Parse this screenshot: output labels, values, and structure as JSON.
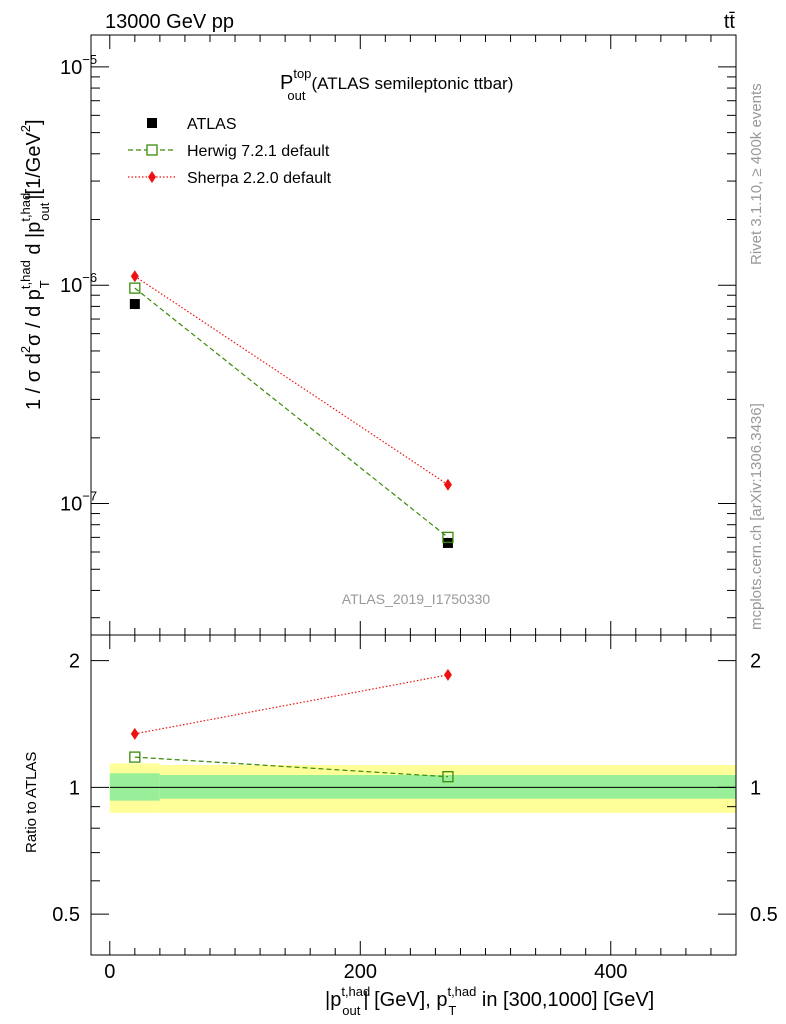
{
  "header": {
    "left": "13000 GeV pp",
    "right": "tt̄"
  },
  "side_labels": {
    "rivet": "Rivet 3.1.10, ≥ 400k events",
    "mcplots": "mcplots.cern.ch [arXiv:1306.3436]"
  },
  "colors": {
    "atlas": "#000000",
    "herwig": "#3a8a0a",
    "sherpa": "#ee1111",
    "band_inner": "#99ee99",
    "band_outer": "#ffff99",
    "watermark": "#999999"
  },
  "chart_data": [
    {
      "type": "scatter",
      "title": {
        "base": "P",
        "sup": "top",
        "sub": "out",
        "rest": "(ATLAS semileptonic ttbar)"
      },
      "watermark": "ATLAS_2019_I1750330",
      "ylabel": {
        "p1": "1 / σ d",
        "p1_sup": "2",
        "p2": "σ / d p",
        "p2_sup": "t,had",
        "p2_sub": "T",
        "p3": " d |p",
        "p3_sup": "t,had",
        "p3_sub": "out",
        "p4": "|[1/GeV",
        "p4_sup": "2",
        "p5": "]"
      },
      "yscale": "log",
      "xlim": [
        -15,
        500
      ],
      "ylim": [
        2.5e-08,
        1.4e-05
      ],
      "ytick_labels": [
        {
          "value": 1e-05,
          "base": "10",
          "exp": "−5"
        },
        {
          "value": 1e-06,
          "base": "10",
          "exp": "−6"
        },
        {
          "value": 1e-07,
          "base": "10",
          "exp": "−7"
        }
      ],
      "legend_position": "top-left",
      "series": [
        {
          "name": "ATLAS",
          "x": [
            20,
            270
          ],
          "y": [
            8.2e-07,
            6.6e-08
          ],
          "marker": "square-filled"
        },
        {
          "name": "Herwig 7.2.1 default",
          "x": [
            20,
            270
          ],
          "y": [
            9.7e-07,
            7e-08
          ],
          "marker": "square-open",
          "line": "dashed"
        },
        {
          "name": "Sherpa 2.2.0 default",
          "x": [
            20,
            270
          ],
          "y": [
            1.1e-06,
            1.22e-07
          ],
          "marker": "diamond",
          "line": "dotted"
        }
      ]
    },
    {
      "type": "scatter",
      "ylabel": "Ratio to ATLAS",
      "xlabel": {
        "p1": "|p",
        "p1_sup": "t,had",
        "p1_sub": "out",
        "p2": "| [GeV], p",
        "p2_sup": "t,had",
        "p2_sub": "T",
        "p3": " in [300,1000] [GeV]"
      },
      "xlim": [
        -15,
        500
      ],
      "ylim": [
        0.4,
        2.3
      ],
      "x_ticks": [
        0,
        200,
        400
      ],
      "y_ticks": [
        0.5,
        1,
        2
      ],
      "y_tick_labels": [
        "0.5",
        "1",
        "2"
      ],
      "bands": [
        {
          "x0": 0,
          "x1": 40,
          "inner": [
            0.93,
            1.08
          ],
          "outer": [
            0.87,
            1.14
          ]
        },
        {
          "x0": 40,
          "x1": 500,
          "inner": [
            0.94,
            1.07
          ],
          "outer": [
            0.87,
            1.13
          ]
        }
      ],
      "reference": 1,
      "series": [
        {
          "name": "Herwig 7.2.1 default",
          "x": [
            20,
            270
          ],
          "y": [
            1.18,
            1.06
          ]
        },
        {
          "name": "Sherpa 2.2.0 default",
          "x": [
            20,
            270
          ],
          "y": [
            1.34,
            1.85
          ]
        }
      ]
    }
  ]
}
